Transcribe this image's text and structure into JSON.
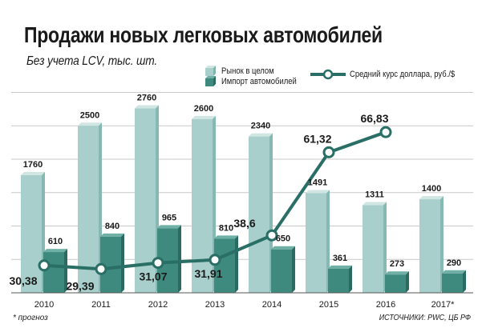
{
  "chart_data": {
    "type": "bar",
    "title": "Продажи новых легковых автомобилей",
    "subtitle": "Без учета LCV, тыс. шт.",
    "categories": [
      "2010",
      "2011",
      "2012",
      "2013",
      "2014",
      "2015",
      "2016",
      "2017*"
    ],
    "series": [
      {
        "name": "Рынок в целом",
        "type": "bar",
        "values": [
          1760,
          2500,
          2760,
          2600,
          2340,
          1491,
          1311,
          1400
        ],
        "color": "#a8cfcb"
      },
      {
        "name": "Импорт автомобилей",
        "type": "bar",
        "values": [
          610,
          840,
          965,
          810,
          650,
          361,
          273,
          290
        ],
        "color": "#3e8a7e"
      },
      {
        "name": "Средний курс доллара, руб./$",
        "type": "line",
        "values": [
          30.38,
          29.39,
          31.07,
          31.91,
          38.6,
          61.32,
          66.83,
          null
        ],
        "labels": [
          "30,38",
          "29,39",
          "31,07",
          "31,91",
          "38,6",
          "61,32",
          "66,83",
          ""
        ],
        "color": "#2a6f66"
      }
    ],
    "bar_ylim": [
      0,
      3000
    ],
    "grid": true,
    "legend_position": "top-right",
    "footnote": "* прогноз",
    "source": "ИСТОЧНИКИ: PWC, ЦБ РФ"
  }
}
